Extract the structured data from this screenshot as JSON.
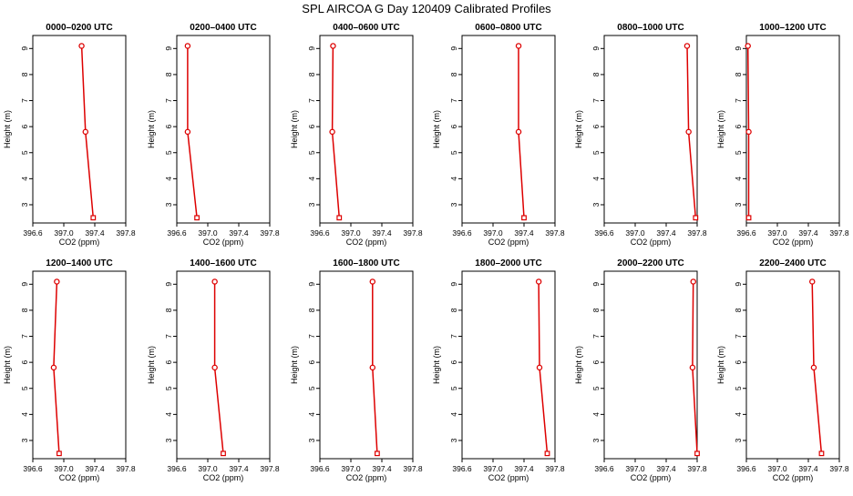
{
  "page": {
    "title": "SPL AIRCOA G  Day 120409  Calibrated Profiles"
  },
  "style": {
    "line_color": "#dd0000",
    "axis_color": "#000000",
    "background": "#ffffff"
  },
  "chart_data": [
    {
      "type": "line",
      "title": "0000–0200 UTC",
      "xlabel": "CO2 (ppm)",
      "ylabel": "Height (m)",
      "xlim": [
        396.6,
        397.8
      ],
      "ylim": [
        2.3,
        9.5
      ],
      "xticks": [
        "396.6",
        "397.0",
        "397.4",
        "397.8"
      ],
      "yticks": [
        "3",
        "4",
        "5",
        "6",
        "7",
        "8",
        "9"
      ],
      "x": [
        397.23,
        397.28,
        397.38
      ],
      "y": [
        9.1,
        5.8,
        2.5
      ]
    },
    {
      "type": "line",
      "title": "0200–0400 UTC",
      "xlabel": "CO2 (ppm)",
      "ylabel": "Height (m)",
      "xlim": [
        396.6,
        397.8
      ],
      "ylim": [
        2.3,
        9.5
      ],
      "xticks": [
        "396.6",
        "397.0",
        "397.4",
        "397.8"
      ],
      "yticks": [
        "3",
        "4",
        "5",
        "6",
        "7",
        "8",
        "9"
      ],
      "x": [
        396.74,
        396.74,
        396.86
      ],
      "y": [
        9.1,
        5.8,
        2.5
      ]
    },
    {
      "type": "line",
      "title": "0400–0600 UTC",
      "xlabel": "CO2 (ppm)",
      "ylabel": "Height (m)",
      "xlim": [
        396.6,
        397.8
      ],
      "ylim": [
        2.3,
        9.5
      ],
      "xticks": [
        "396.6",
        "397.0",
        "397.4",
        "397.8"
      ],
      "yticks": [
        "3",
        "4",
        "5",
        "6",
        "7",
        "8",
        "9"
      ],
      "x": [
        396.77,
        396.76,
        396.85
      ],
      "y": [
        9.1,
        5.8,
        2.5
      ]
    },
    {
      "type": "line",
      "title": "0600–0800 UTC",
      "xlabel": "CO2 (ppm)",
      "ylabel": "Height (m)",
      "xlim": [
        396.6,
        397.8
      ],
      "ylim": [
        2.3,
        9.5
      ],
      "xticks": [
        "396.6",
        "397.0",
        "397.4",
        "397.8"
      ],
      "yticks": [
        "3",
        "4",
        "5",
        "6",
        "7",
        "8",
        "9"
      ],
      "x": [
        397.33,
        397.33,
        397.4
      ],
      "y": [
        9.1,
        5.8,
        2.5
      ]
    },
    {
      "type": "line",
      "title": "0800–1000 UTC",
      "xlabel": "CO2 (ppm)",
      "ylabel": "Height (m)",
      "xlim": [
        396.6,
        397.8
      ],
      "ylim": [
        2.3,
        9.5
      ],
      "xticks": [
        "396.6",
        "397.0",
        "397.4",
        "397.8"
      ],
      "yticks": [
        "3",
        "4",
        "5",
        "6",
        "7",
        "8",
        "9"
      ],
      "x": [
        397.67,
        397.69,
        397.78
      ],
      "y": [
        9.1,
        5.8,
        2.5
      ]
    },
    {
      "type": "line",
      "title": "1000–1200 UTC",
      "xlabel": "CO2 (ppm)",
      "ylabel": "Height (m)",
      "xlim": [
        396.6,
        397.8
      ],
      "ylim": [
        2.3,
        9.5
      ],
      "xticks": [
        "396.6",
        "397.0",
        "397.4",
        "397.8"
      ],
      "yticks": [
        "3",
        "4",
        "5",
        "6",
        "7",
        "8",
        "9"
      ],
      "x": [
        396.62,
        396.63,
        396.63
      ],
      "y": [
        9.1,
        5.8,
        2.5
      ]
    },
    {
      "type": "line",
      "title": "1200–1400 UTC",
      "xlabel": "CO2 (ppm)",
      "ylabel": "Height (m)",
      "xlim": [
        396.6,
        397.8
      ],
      "ylim": [
        2.3,
        9.5
      ],
      "xticks": [
        "396.6",
        "397.0",
        "397.4",
        "397.8"
      ],
      "yticks": [
        "3",
        "4",
        "5",
        "6",
        "7",
        "8",
        "9"
      ],
      "x": [
        396.91,
        396.87,
        396.94
      ],
      "y": [
        9.1,
        5.8,
        2.5
      ]
    },
    {
      "type": "line",
      "title": "1400–1600 UTC",
      "xlabel": "CO2 (ppm)",
      "ylabel": "Height (m)",
      "xlim": [
        396.6,
        397.8
      ],
      "ylim": [
        2.3,
        9.5
      ],
      "xticks": [
        "396.6",
        "397.0",
        "397.4",
        "397.8"
      ],
      "yticks": [
        "3",
        "4",
        "5",
        "6",
        "7",
        "8",
        "9"
      ],
      "x": [
        397.09,
        397.09,
        397.2
      ],
      "y": [
        9.1,
        5.8,
        2.5
      ]
    },
    {
      "type": "line",
      "title": "1600–1800 UTC",
      "xlabel": "CO2 (ppm)",
      "ylabel": "Height (m)",
      "xlim": [
        396.6,
        397.8
      ],
      "ylim": [
        2.3,
        9.5
      ],
      "xticks": [
        "396.6",
        "397.0",
        "397.4",
        "397.8"
      ],
      "yticks": [
        "3",
        "4",
        "5",
        "6",
        "7",
        "8",
        "9"
      ],
      "x": [
        397.28,
        397.28,
        397.34
      ],
      "y": [
        9.1,
        5.8,
        2.5
      ]
    },
    {
      "type": "line",
      "title": "1800–2000 UTC",
      "xlabel": "CO2 (ppm)",
      "ylabel": "Height (m)",
      "xlim": [
        396.6,
        397.8
      ],
      "ylim": [
        2.3,
        9.5
      ],
      "xticks": [
        "396.6",
        "397.0",
        "397.4",
        "397.8"
      ],
      "yticks": [
        "3",
        "4",
        "5",
        "6",
        "7",
        "8",
        "9"
      ],
      "x": [
        397.59,
        397.6,
        397.7
      ],
      "y": [
        9.1,
        5.8,
        2.5
      ]
    },
    {
      "type": "line",
      "title": "2000–2200 UTC",
      "xlabel": "CO2 (ppm)",
      "ylabel": "Height (m)",
      "xlim": [
        396.6,
        397.8
      ],
      "ylim": [
        2.3,
        9.5
      ],
      "xticks": [
        "396.6",
        "397.0",
        "397.4",
        "397.8"
      ],
      "yticks": [
        "3",
        "4",
        "5",
        "6",
        "7",
        "8",
        "9"
      ],
      "x": [
        397.75,
        397.74,
        397.8
      ],
      "y": [
        9.1,
        5.8,
        2.5
      ]
    },
    {
      "type": "line",
      "title": "2200–2400 UTC",
      "xlabel": "CO2 (ppm)",
      "ylabel": "Height (m)",
      "xlim": [
        396.6,
        397.8
      ],
      "ylim": [
        2.3,
        9.5
      ],
      "xticks": [
        "396.6",
        "397.0",
        "397.4",
        "397.8"
      ],
      "yticks": [
        "3",
        "4",
        "5",
        "6",
        "7",
        "8",
        "9"
      ],
      "x": [
        397.45,
        397.47,
        397.57
      ],
      "y": [
        9.1,
        5.8,
        2.5
      ]
    }
  ]
}
